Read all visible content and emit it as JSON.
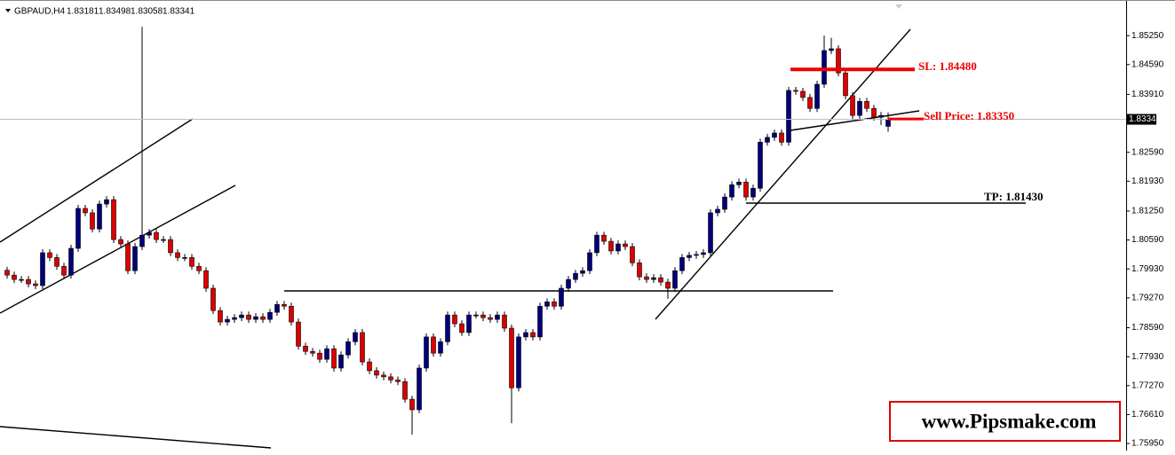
{
  "chart_data": {
    "type": "candlestick",
    "symbol": "GBPAUD,H4",
    "bull_color": "#00007a",
    "bear_color": "#dd0000",
    "wick_color": "#000000",
    "ylim": [
      1.7585,
      1.859
    ],
    "yticks": [
      {
        "value": 1.8525,
        "label": "1.85250"
      },
      {
        "value": 1.8459,
        "label": "1.84590"
      },
      {
        "value": 1.8391,
        "label": "1.83910"
      },
      {
        "value": 1.8259,
        "label": "1.82590"
      },
      {
        "value": 1.8193,
        "label": "1.81930"
      },
      {
        "value": 1.8125,
        "label": "1.81250"
      },
      {
        "value": 1.8059,
        "label": "1.80590"
      },
      {
        "value": 1.7993,
        "label": "1.79930"
      },
      {
        "value": 1.7927,
        "label": "1.79270"
      },
      {
        "value": 1.7859,
        "label": "1.78590"
      },
      {
        "value": 1.7793,
        "label": "1.77930"
      },
      {
        "value": 1.7727,
        "label": "1.77270"
      },
      {
        "value": 1.7661,
        "label": "1.76610"
      },
      {
        "value": 1.7595,
        "label": "1.75950"
      }
    ],
    "ohlc": [
      [
        1.799,
        1.7998,
        1.7971,
        1.7979
      ],
      [
        1.7979,
        1.7987,
        1.7961,
        1.7969
      ],
      [
        1.7969,
        1.7977,
        1.7961,
        1.7969
      ],
      [
        1.7969,
        1.7977,
        1.7951,
        1.7959
      ],
      [
        1.7959,
        1.7967,
        1.7947,
        1.7955
      ],
      [
        1.7955,
        1.8038,
        1.7947,
        1.803
      ],
      [
        1.803,
        1.8038,
        1.8011,
        1.8019
      ],
      [
        1.8019,
        1.8027,
        1.7991,
        1.7999
      ],
      [
        1.7999,
        1.8007,
        1.7971,
        1.7979
      ],
      [
        1.7979,
        1.8048,
        1.7971,
        1.804
      ],
      [
        1.804,
        1.8139,
        1.8032,
        1.8131
      ],
      [
        1.8131,
        1.8139,
        1.8113,
        1.8121
      ],
      [
        1.8121,
        1.8129,
        1.8076,
        1.8084
      ],
      [
        1.8084,
        1.8149,
        1.8076,
        1.8141
      ],
      [
        1.8141,
        1.8159,
        1.8133,
        1.8151
      ],
      [
        1.8151,
        1.8159,
        1.8052,
        1.806
      ],
      [
        1.806,
        1.8068,
        1.8042,
        1.805
      ],
      [
        1.805,
        1.8058,
        1.7981,
        1.7989
      ],
      [
        1.7989,
        1.8052,
        1.7981,
        1.8044
      ],
      [
        1.8044,
        1.8545,
        1.8036,
        1.807
      ],
      [
        1.807,
        1.8084,
        1.8062,
        1.8076
      ],
      [
        1.8076,
        1.8084,
        1.8052,
        1.806
      ],
      [
        1.806,
        1.8068,
        1.8052,
        1.806
      ],
      [
        1.806,
        1.8068,
        1.8022,
        1.803
      ],
      [
        1.803,
        1.8038,
        1.8011,
        1.8019
      ],
      [
        1.8019,
        1.8027,
        1.8011,
        1.8019
      ],
      [
        1.8019,
        1.8027,
        1.7991,
        1.7999
      ],
      [
        1.7999,
        1.8007,
        1.7981,
        1.7989
      ],
      [
        1.7989,
        1.7997,
        1.7941,
        1.7949
      ],
      [
        1.7949,
        1.7957,
        1.789,
        1.7898
      ],
      [
        1.7898,
        1.7906,
        1.7864,
        1.7872
      ],
      [
        1.7872,
        1.7886,
        1.7864,
        1.7878
      ],
      [
        1.7878,
        1.789,
        1.787,
        1.7882
      ],
      [
        1.7882,
        1.7896,
        1.7874,
        1.7888
      ],
      [
        1.7888,
        1.7896,
        1.787,
        1.7878
      ],
      [
        1.7878,
        1.7892,
        1.787,
        1.7884
      ],
      [
        1.7884,
        1.7892,
        1.787,
        1.7878
      ],
      [
        1.7878,
        1.7902,
        1.787,
        1.7894
      ],
      [
        1.7894,
        1.792,
        1.7886,
        1.7912
      ],
      [
        1.7912,
        1.792,
        1.79,
        1.7908
      ],
      [
        1.7908,
        1.7916,
        1.7864,
        1.7872
      ],
      [
        1.7872,
        1.788,
        1.7809,
        1.7817
      ],
      [
        1.7817,
        1.7825,
        1.7797,
        1.7805
      ],
      [
        1.7805,
        1.7813,
        1.7793,
        1.7801
      ],
      [
        1.7801,
        1.7809,
        1.7779,
        1.7787
      ],
      [
        1.7787,
        1.7819,
        1.7779,
        1.7811
      ],
      [
        1.7811,
        1.7819,
        1.7759,
        1.7767
      ],
      [
        1.7767,
        1.7805,
        1.7759,
        1.7797
      ],
      [
        1.7797,
        1.7835,
        1.7789,
        1.7827
      ],
      [
        1.7827,
        1.7856,
        1.7819,
        1.7848
      ],
      [
        1.7848,
        1.7856,
        1.7773,
        1.7781
      ],
      [
        1.7781,
        1.7789,
        1.7753,
        1.7761
      ],
      [
        1.7761,
        1.7769,
        1.7743,
        1.7751
      ],
      [
        1.7751,
        1.7759,
        1.7739,
        1.7747
      ],
      [
        1.7747,
        1.7755,
        1.7732,
        1.774
      ],
      [
        1.774,
        1.7748,
        1.7728,
        1.7736
      ],
      [
        1.7736,
        1.7744,
        1.7688,
        1.7696
      ],
      [
        1.7696,
        1.7704,
        1.7615,
        1.7672
      ],
      [
        1.7672,
        1.7775,
        1.7664,
        1.7767
      ],
      [
        1.7767,
        1.7846,
        1.7759,
        1.7838
      ],
      [
        1.7838,
        1.7846,
        1.7793,
        1.7801
      ],
      [
        1.7801,
        1.7835,
        1.7793,
        1.7827
      ],
      [
        1.7827,
        1.7896,
        1.7819,
        1.7888
      ],
      [
        1.7888,
        1.7896,
        1.786,
        1.7868
      ],
      [
        1.7868,
        1.7876,
        1.784,
        1.7848
      ],
      [
        1.7848,
        1.7896,
        1.784,
        1.7888
      ],
      [
        1.7888,
        1.7896,
        1.788,
        1.7888
      ],
      [
        1.7888,
        1.7896,
        1.7874,
        1.7882
      ],
      [
        1.7882,
        1.789,
        1.787,
        1.7878
      ],
      [
        1.7878,
        1.7896,
        1.787,
        1.7888
      ],
      [
        1.7888,
        1.7896,
        1.785,
        1.7858
      ],
      [
        1.7858,
        1.7866,
        1.7641,
        1.7722
      ],
      [
        1.7722,
        1.7846,
        1.7714,
        1.7838
      ],
      [
        1.7838,
        1.7856,
        1.783,
        1.7848
      ],
      [
        1.7848,
        1.7856,
        1.783,
        1.7838
      ],
      [
        1.7838,
        1.7916,
        1.783,
        1.7908
      ],
      [
        1.7908,
        1.7926,
        1.79,
        1.7918
      ],
      [
        1.7918,
        1.7926,
        1.79,
        1.7908
      ],
      [
        1.7908,
        1.7957,
        1.79,
        1.7949
      ],
      [
        1.7949,
        1.7977,
        1.7941,
        1.7969
      ],
      [
        1.7969,
        1.7991,
        1.7961,
        1.7983
      ],
      [
        1.7983,
        1.7997,
        1.7975,
        1.7989
      ],
      [
        1.7989,
        1.8038,
        1.7981,
        1.803
      ],
      [
        1.803,
        1.8078,
        1.8022,
        1.807
      ],
      [
        1.807,
        1.8078,
        1.8048,
        1.8056
      ],
      [
        1.8056,
        1.8064,
        1.8026,
        1.8034
      ],
      [
        1.8034,
        1.8058,
        1.8026,
        1.805
      ],
      [
        1.805,
        1.8058,
        1.8036,
        1.8044
      ],
      [
        1.8044,
        1.8052,
        1.7999,
        1.8007
      ],
      [
        1.8007,
        1.8015,
        1.7967,
        1.7975
      ],
      [
        1.7975,
        1.7983,
        1.7961,
        1.7969
      ],
      [
        1.7969,
        1.7981,
        1.7961,
        1.7973
      ],
      [
        1.7973,
        1.7981,
        1.7955,
        1.7963
      ],
      [
        1.7963,
        1.7971,
        1.7925,
        1.7949
      ],
      [
        1.7949,
        1.7997,
        1.7941,
        1.7989
      ],
      [
        1.7989,
        1.8027,
        1.7981,
        1.8019
      ],
      [
        1.8019,
        1.8032,
        1.8011,
        1.8024
      ],
      [
        1.8024,
        1.8034,
        1.8016,
        1.8026
      ],
      [
        1.8026,
        1.8038,
        1.8018,
        1.803
      ],
      [
        1.803,
        1.8129,
        1.8022,
        1.8121
      ],
      [
        1.8121,
        1.8137,
        1.8113,
        1.8129
      ],
      [
        1.8129,
        1.8165,
        1.8121,
        1.8157
      ],
      [
        1.8157,
        1.8193,
        1.8149,
        1.8185
      ],
      [
        1.8185,
        1.8199,
        1.8177,
        1.8191
      ],
      [
        1.8191,
        1.8199,
        1.8149,
        1.8157
      ],
      [
        1.8157,
        1.8185,
        1.8149,
        1.8177
      ],
      [
        1.8177,
        1.829,
        1.8169,
        1.8282
      ],
      [
        1.8282,
        1.8301,
        1.8274,
        1.8293
      ],
      [
        1.8293,
        1.8311,
        1.8285,
        1.8303
      ],
      [
        1.8303,
        1.8311,
        1.8274,
        1.8282
      ],
      [
        1.8282,
        1.8408,
        1.8274,
        1.84
      ],
      [
        1.84,
        1.8408,
        1.839,
        1.8398
      ],
      [
        1.8398,
        1.8406,
        1.8376,
        1.8384
      ],
      [
        1.8384,
        1.8392,
        1.8351,
        1.8359
      ],
      [
        1.8359,
        1.8422,
        1.8351,
        1.8414
      ],
      [
        1.8414,
        1.8525,
        1.8406,
        1.8491
      ],
      [
        1.8491,
        1.852,
        1.8483,
        1.8495
      ],
      [
        1.8495,
        1.8503,
        1.8432,
        1.844
      ],
      [
        1.844,
        1.8448,
        1.838,
        1.8388
      ],
      [
        1.8388,
        1.8396,
        1.8335,
        1.8343
      ],
      [
        1.8343,
        1.8383,
        1.8335,
        1.8375
      ],
      [
        1.8375,
        1.8383,
        1.8351,
        1.8359
      ],
      [
        1.8359,
        1.8367,
        1.8331,
        1.8339
      ],
      [
        1.8339,
        1.8351,
        1.8321,
        1.8343
      ],
      [
        1.83181,
        1.83498,
        1.83058,
        1.83341
      ]
    ],
    "annotations": [
      {
        "text": "SL: 1.84480",
        "level": 1.8448,
        "color": "#ee0000"
      },
      {
        "text": "Sell Price: 1.83350",
        "level": 1.8335,
        "color": "#ee0000"
      },
      {
        "text": "TP: 1.81430",
        "level": 1.8143,
        "color": "#000000"
      }
    ],
    "watermark": "www.Pipsmake.com"
  }
}
